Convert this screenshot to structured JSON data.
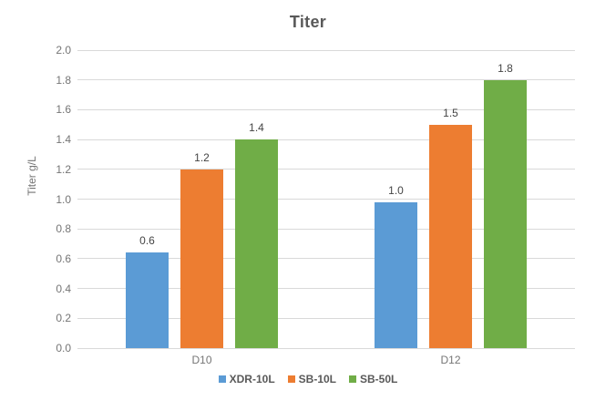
{
  "chart_data": {
    "type": "bar",
    "title": "Titer",
    "ylabel": "Titer g/L",
    "xlabel": "",
    "categories": [
      "D10",
      "D12"
    ],
    "series": [
      {
        "name": "XDR-10L",
        "color": "#5B9BD5",
        "values": [
          0.64,
          0.98
        ],
        "labels": [
          "0.6",
          "1.0"
        ]
      },
      {
        "name": "SB-10L",
        "color": "#ED7D31",
        "values": [
          1.2,
          1.5
        ],
        "labels": [
          "1.2",
          "1.5"
        ]
      },
      {
        "name": "SB-50L",
        "color": "#70AD47",
        "values": [
          1.4,
          1.8
        ],
        "labels": [
          "1.4",
          "1.8"
        ]
      }
    ],
    "ylim": [
      0.0,
      2.0
    ],
    "yticks": [
      "0.0",
      "0.2",
      "0.4",
      "0.6",
      "0.8",
      "1.0",
      "1.2",
      "1.4",
      "1.6",
      "1.8",
      "2.0"
    ],
    "grid": "horizontal",
    "legend_position": "bottom"
  },
  "colors": {
    "background": "#FFFFFF",
    "title_text": "#595959",
    "axis_text": "#757575",
    "data_label_text": "#444444",
    "legend_text": "#595959",
    "gridline": "#D9D9D9"
  }
}
